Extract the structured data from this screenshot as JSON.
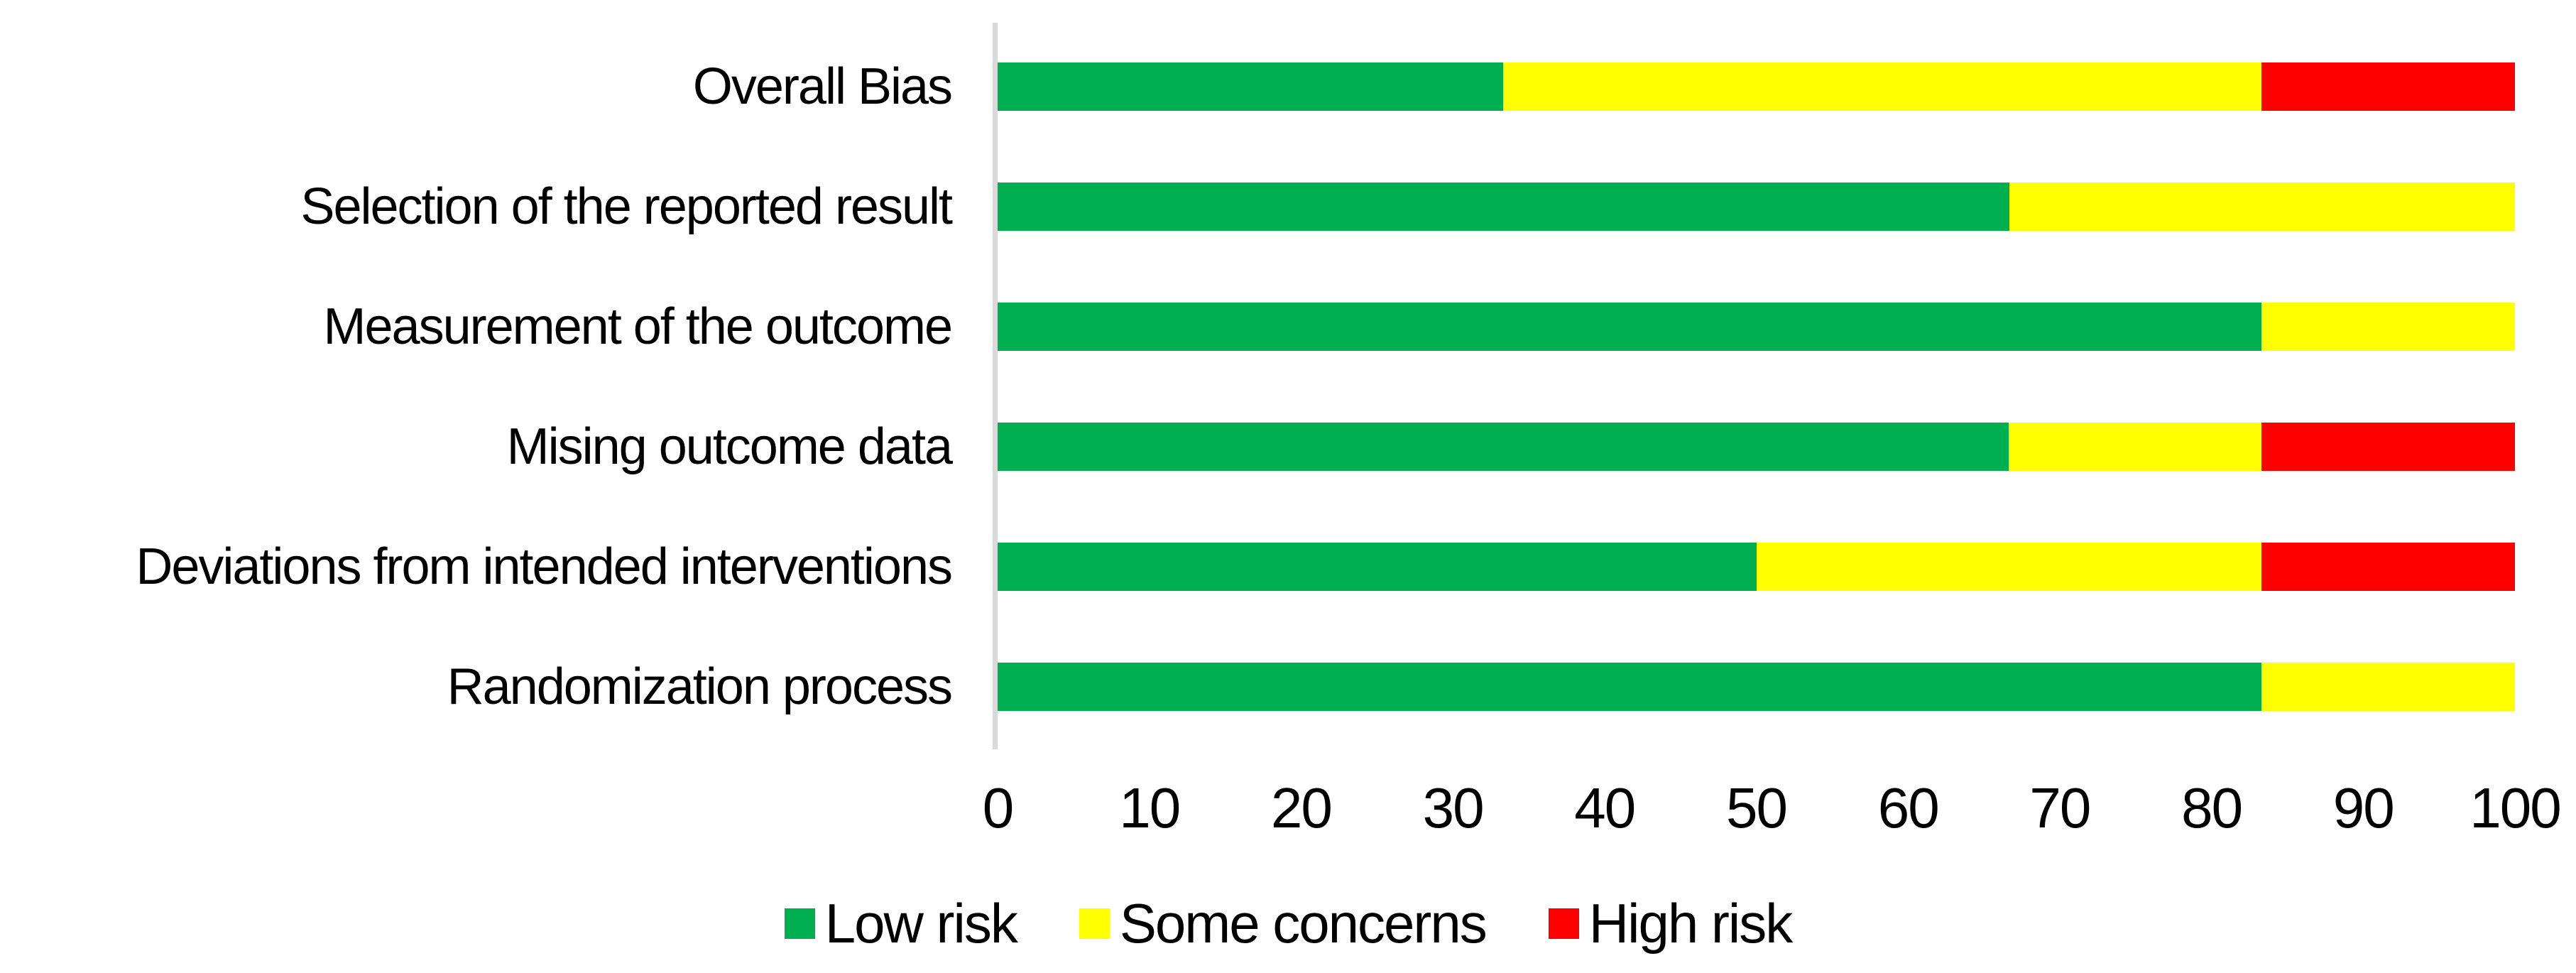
{
  "chart_data": {
    "type": "bar",
    "orientation": "horizontal",
    "stacked": true,
    "title": "",
    "xlabel": "",
    "ylabel": "",
    "xlim": [
      0,
      100
    ],
    "x_ticks": [
      0,
      10,
      20,
      30,
      40,
      50,
      60,
      70,
      80,
      90,
      100
    ],
    "grid": false,
    "legend_position": "bottom",
    "axis_line_color": "#d9d9d9",
    "text_color": "#000000",
    "categories": [
      "Overall Bias",
      "Selection of the reported result",
      "Measurement of the outcome",
      "Mising outcome data",
      "Deviations from intended interventions",
      "Randomization process"
    ],
    "series": [
      {
        "name": "Low risk",
        "color": "#00B050",
        "values": [
          33.3,
          66.7,
          83.3,
          66.7,
          50.0,
          83.3
        ]
      },
      {
        "name": "Some concerns",
        "color": "#FFFF00",
        "values": [
          50.0,
          33.3,
          16.7,
          16.7,
          33.3,
          16.7
        ]
      },
      {
        "name": "High risk",
        "color": "#FF0000",
        "values": [
          16.7,
          0,
          0,
          16.7,
          16.7,
          0
        ]
      }
    ]
  },
  "layout_note_values_are_percent_of_studies": true
}
